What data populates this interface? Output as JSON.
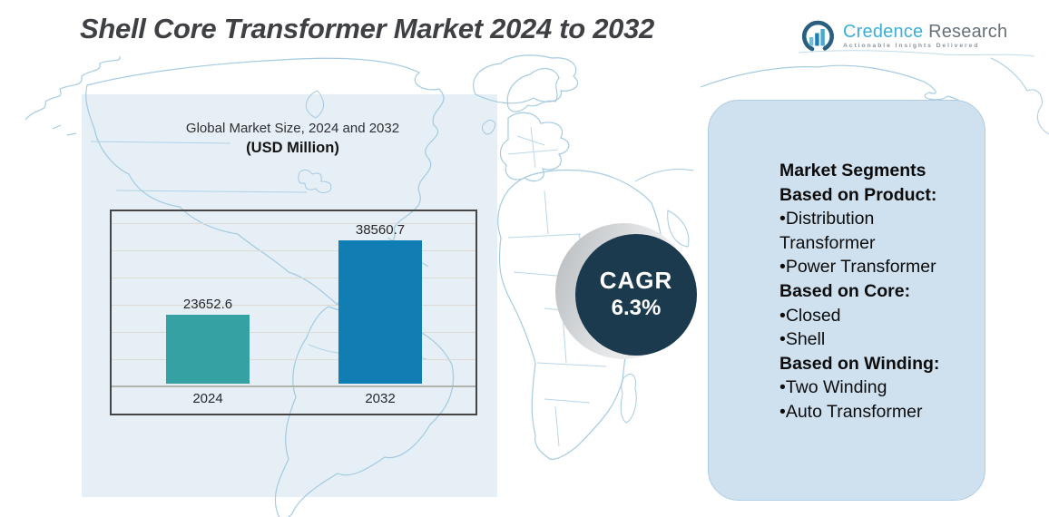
{
  "header": {
    "title": "Shell Core Transformer Market 2024 to 2032",
    "logo": {
      "brand_primary": "Credence",
      "brand_secondary": " Research",
      "tagline": "Actionable Insights Delivered"
    }
  },
  "chart": {
    "title_line1": "Global Market Size, 2024 and 2032",
    "title_line2": "(USD Million)"
  },
  "chart_data": {
    "type": "bar",
    "title": "Global Market Size, 2024 and 2032 (USD Million)",
    "categories": [
      "2024",
      "2032"
    ],
    "values": [
      23652.6,
      38560.7
    ],
    "value_labels": [
      "23652.6",
      "38560.7"
    ],
    "bar_colors": [
      "#35a1a2",
      "#117eb3"
    ],
    "ylabel": "",
    "xlabel": "",
    "ylim": [
      10000,
      45000
    ],
    "gridline_step": 5000,
    "grid": true,
    "legend": false
  },
  "cagr": {
    "label": "CAGR",
    "value": "6.3%"
  },
  "segments_panel": {
    "lines": [
      {
        "text": "Market Segments",
        "bold": true
      },
      {
        "text": "Based on Product:",
        "bold": true
      },
      {
        "text": "•Distribution",
        "bold": false
      },
      {
        "text": "Transformer",
        "bold": false
      },
      {
        "text": "•Power Transformer",
        "bold": false
      },
      {
        "text": "Based on Core:",
        "bold": true
      },
      {
        "text": "•Closed",
        "bold": false
      },
      {
        "text": "•Shell",
        "bold": false
      },
      {
        "text": "Based on Winding:",
        "bold": true
      },
      {
        "text": "•Two Winding",
        "bold": false
      },
      {
        "text": "•Auto Transformer",
        "bold": false
      }
    ]
  },
  "colors": {
    "bar_2024": "#35a1a2",
    "bar_2032": "#117eb3",
    "cagr_circle": "#1c3a4d",
    "left_panel_bg": "#e6eff6",
    "right_panel_bg": "#cfe1ef",
    "map_stroke": "#9cc6de",
    "title_text": "#3e4043",
    "logo_blue": "#3bafd8",
    "logo_gray": "#67717a"
  }
}
